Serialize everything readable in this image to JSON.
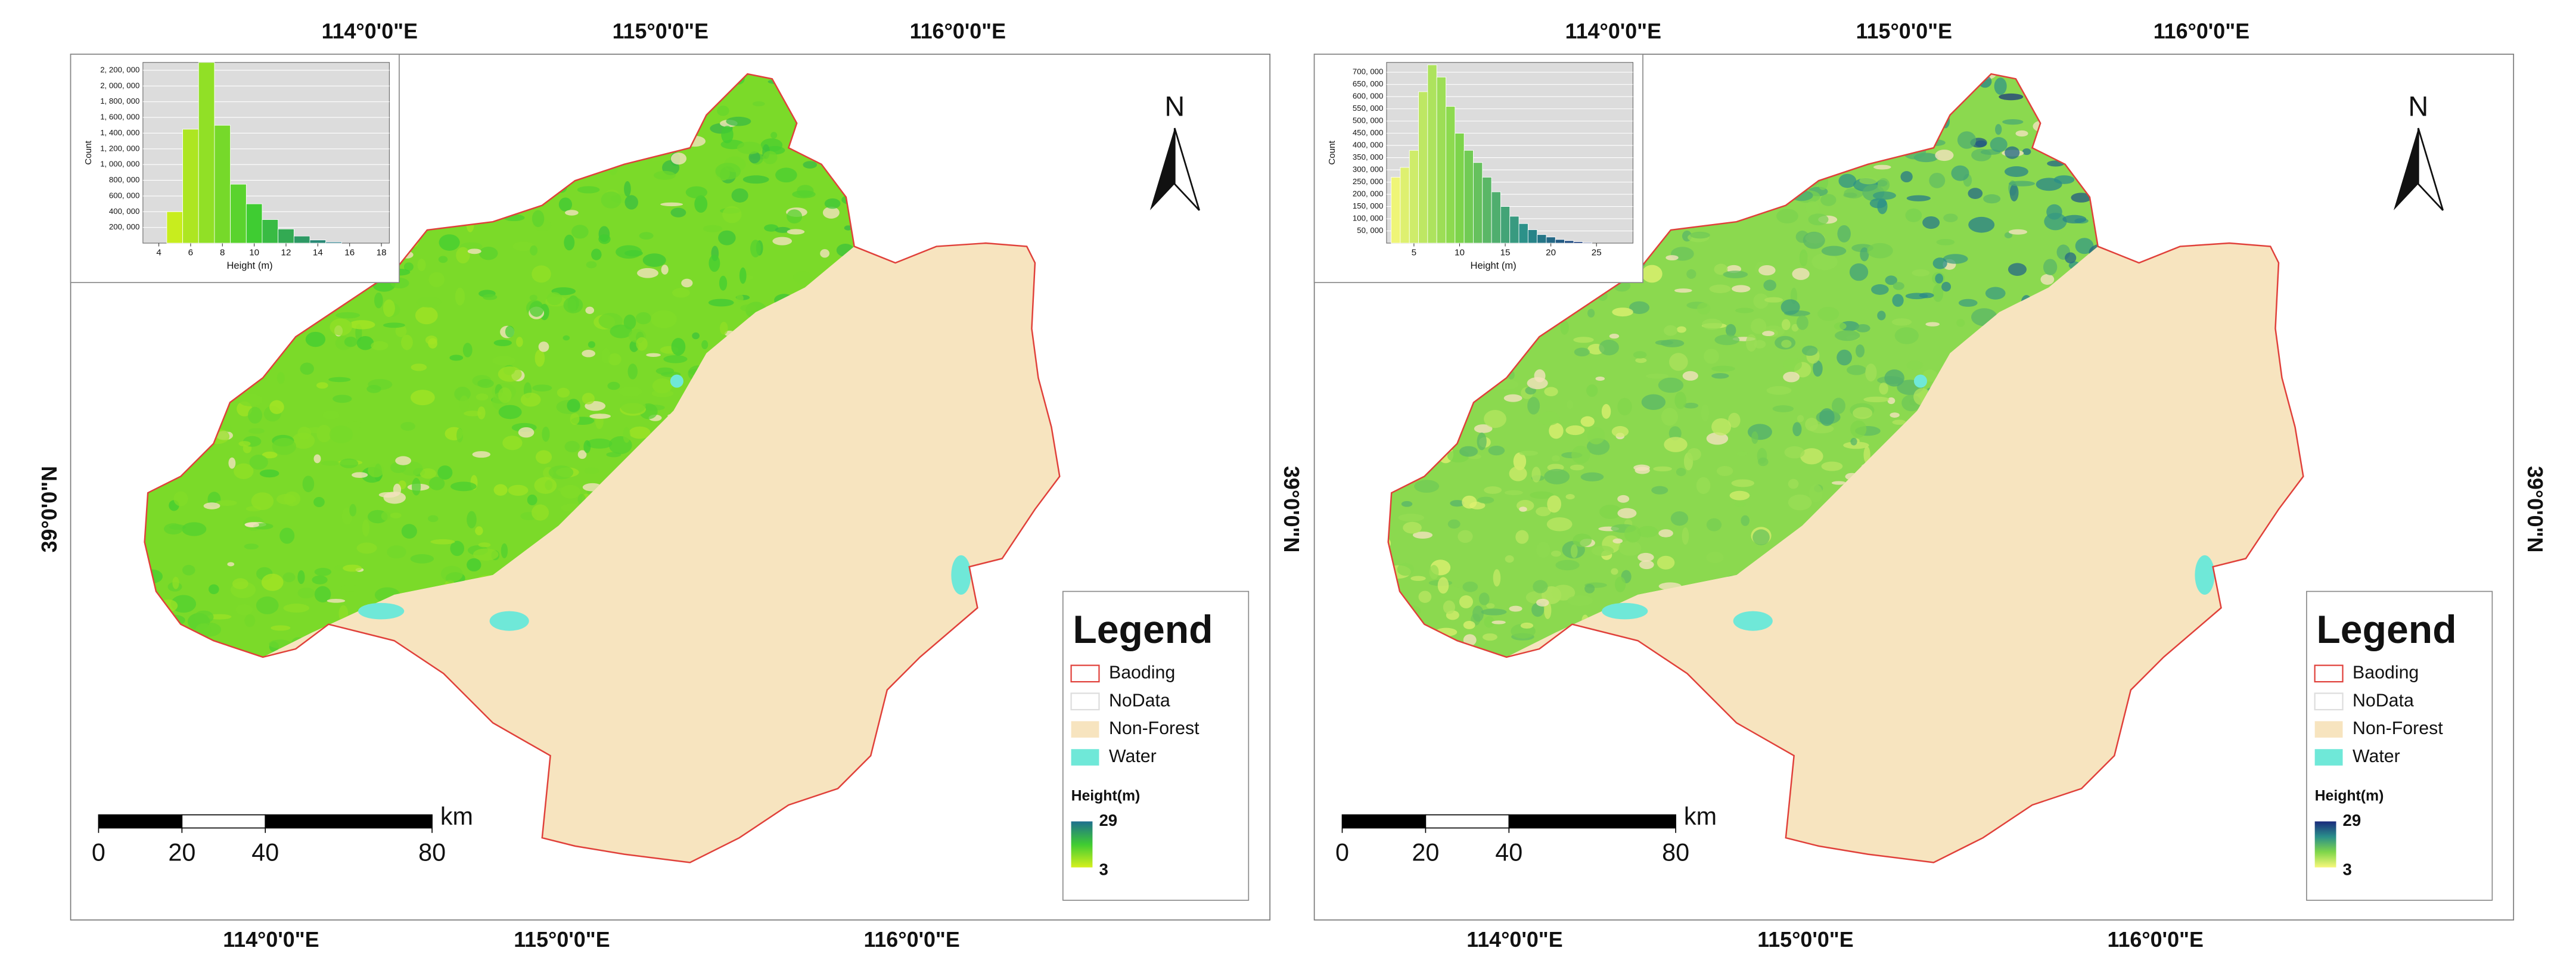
{
  "panels": [
    {
      "top_longitudes": [
        "114°0'0\"E",
        "115°0'0\"E",
        "116°0'0\"E"
      ],
      "bottom_longitudes": [
        "114°0'0\"E",
        "115°0'0\"E",
        "116°0'0\"E"
      ],
      "latitude_left": "39°0'0\"N",
      "latitude_right": "39°0'0\"N",
      "histogram": {
        "y_label": "Count",
        "x_label": "Height (m)",
        "bins": [
          4.5,
          5.5,
          6.5,
          7.5,
          8.5,
          9.5,
          10.5,
          11.5,
          12.5,
          13.5,
          14.5,
          15.5
        ],
        "counts": [
          400000,
          1450000,
          2300000,
          1500000,
          750000,
          500000,
          300000,
          180000,
          90000,
          40000,
          15000
        ],
        "xlim": [
          3,
          18.5
        ],
        "ylim": [
          0,
          2300000
        ],
        "xticks": [
          4,
          6,
          8,
          10,
          12,
          14,
          16,
          18
        ],
        "yticks": [
          {
            "value": 200000,
            "label": "200, 000"
          },
          {
            "value": 400000,
            "label": "400, 000"
          },
          {
            "value": 600000,
            "label": "600, 000"
          },
          {
            "value": 800000,
            "label": "800, 000"
          },
          {
            "value": 1000000,
            "label": "1, 000, 000"
          },
          {
            "value": 1200000,
            "label": "1, 200, 000"
          },
          {
            "value": 1400000,
            "label": "1, 400, 000"
          },
          {
            "value": 1600000,
            "label": "1, 600, 000"
          },
          {
            "value": 1800000,
            "label": "1, 800, 000"
          },
          {
            "value": 2000000,
            "label": "2, 000, 000"
          },
          {
            "value": 2200000,
            "label": "2, 200, 000"
          }
        ],
        "colormap": [
          "#d6f01c",
          "#3fcc32",
          "#1e6f8e"
        ]
      },
      "north": "N",
      "legend": {
        "title": "Legend",
        "items": [
          "Baoding",
          "NoData",
          "Non-Forest",
          "Water"
        ],
        "height_title": "Height(m)",
        "height_max": 29,
        "height_min": 3
      },
      "scale_bar": {
        "unit": "km",
        "ticks": [
          0,
          20,
          40,
          80
        ]
      }
    },
    {
      "top_longitudes": [
        "114°0'0\"E",
        "115°0'0\"E",
        "116°0'0\"E"
      ],
      "bottom_longitudes": [
        "114°0'0\"E",
        "115°0'0\"E",
        "116°0'0\"E"
      ],
      "latitude_right": "39°0'0\"N",
      "histogram": {
        "y_label": "Count",
        "x_label": "Height (m)",
        "bins": [
          2.5,
          3.5,
          4.5,
          5.5,
          6.5,
          7.5,
          8.5,
          9.5,
          10.5,
          11.5,
          12.5,
          13.5,
          14.5,
          15.5,
          16.5,
          17.5,
          18.5,
          19.5,
          20.5,
          21.5,
          22.5,
          23.5,
          24.5
        ],
        "counts": [
          270000,
          310000,
          380000,
          620000,
          730000,
          680000,
          560000,
          450000,
          380000,
          330000,
          270000,
          210000,
          150000,
          110000,
          80000,
          55000,
          35000,
          25000,
          15000,
          10000,
          6000,
          3000
        ],
        "xlim": [
          2,
          29
        ],
        "ylim": [
          0,
          740000
        ],
        "xticks": [
          5,
          10,
          15,
          20,
          25
        ],
        "yticks": [
          {
            "value": 50000,
            "label": "50, 000"
          },
          {
            "value": 100000,
            "label": "100, 000"
          },
          {
            "value": 150000,
            "label": "150, 000"
          },
          {
            "value": 200000,
            "label": "200, 000"
          },
          {
            "value": 250000,
            "label": "250, 000"
          },
          {
            "value": 300000,
            "label": "300, 000"
          },
          {
            "value": 350000,
            "label": "350, 000"
          },
          {
            "value": 400000,
            "label": "400, 000"
          },
          {
            "value": 450000,
            "label": "450, 000"
          },
          {
            "value": 500000,
            "label": "500, 000"
          },
          {
            "value": 550000,
            "label": "550, 000"
          },
          {
            "value": 600000,
            "label": "600, 000"
          },
          {
            "value": 650000,
            "label": "650, 000"
          },
          {
            "value": 700000,
            "label": "700, 000"
          }
        ],
        "colormap": [
          "#f7f77a",
          "#7fd64a",
          "#2a8f8a",
          "#1a2a7c"
        ]
      },
      "north": "N",
      "legend": {
        "title": "Legend",
        "items": [
          "Baoding",
          "NoData",
          "Non-Forest",
          "Water"
        ],
        "height_title": "Height(m)",
        "height_max": 29,
        "height_min": 3
      },
      "scale_bar": {
        "unit": "km",
        "ticks": [
          0,
          20,
          40,
          80
        ]
      }
    }
  ]
}
